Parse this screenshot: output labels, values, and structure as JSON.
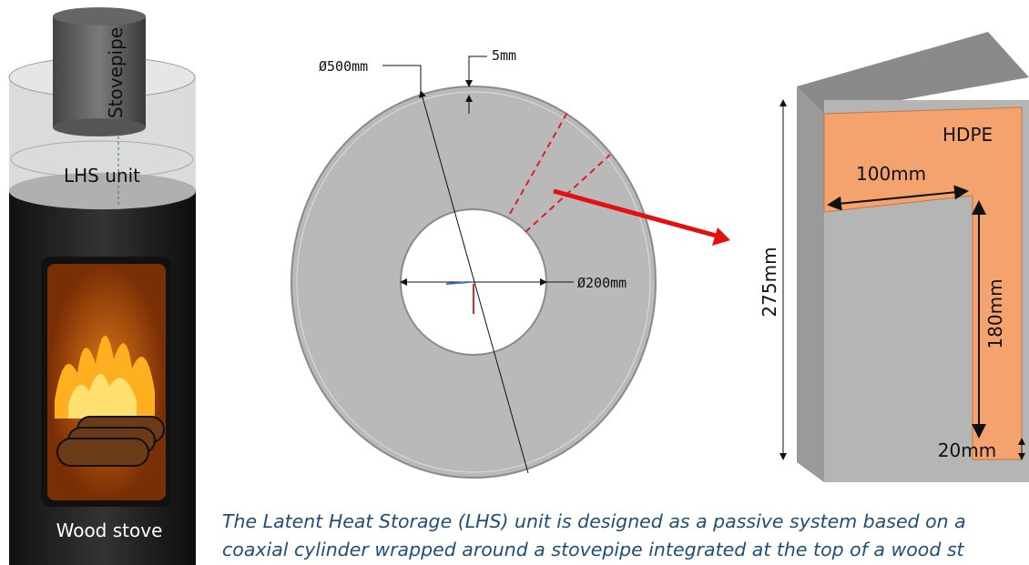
{
  "stove": {
    "stovepipe": "Stovepipe",
    "lhs_unit": "LHS unit",
    "wood_stove": "Wood stove"
  },
  "section": {
    "outer_diameter": "Ø500mm",
    "wall": "5mm",
    "inner_diameter": "Ø200mm"
  },
  "block": {
    "height": "275mm",
    "material": "HDPE",
    "width": "100mm",
    "inner_height": "180mm",
    "bottom": "20mm"
  },
  "caption": [
    "The Latent Heat Storage (LHS) unit is designed as a passive system based on a",
    "coaxial cylinder wrapped around a stovepipe integrated at the top of a wood st"
  ]
}
